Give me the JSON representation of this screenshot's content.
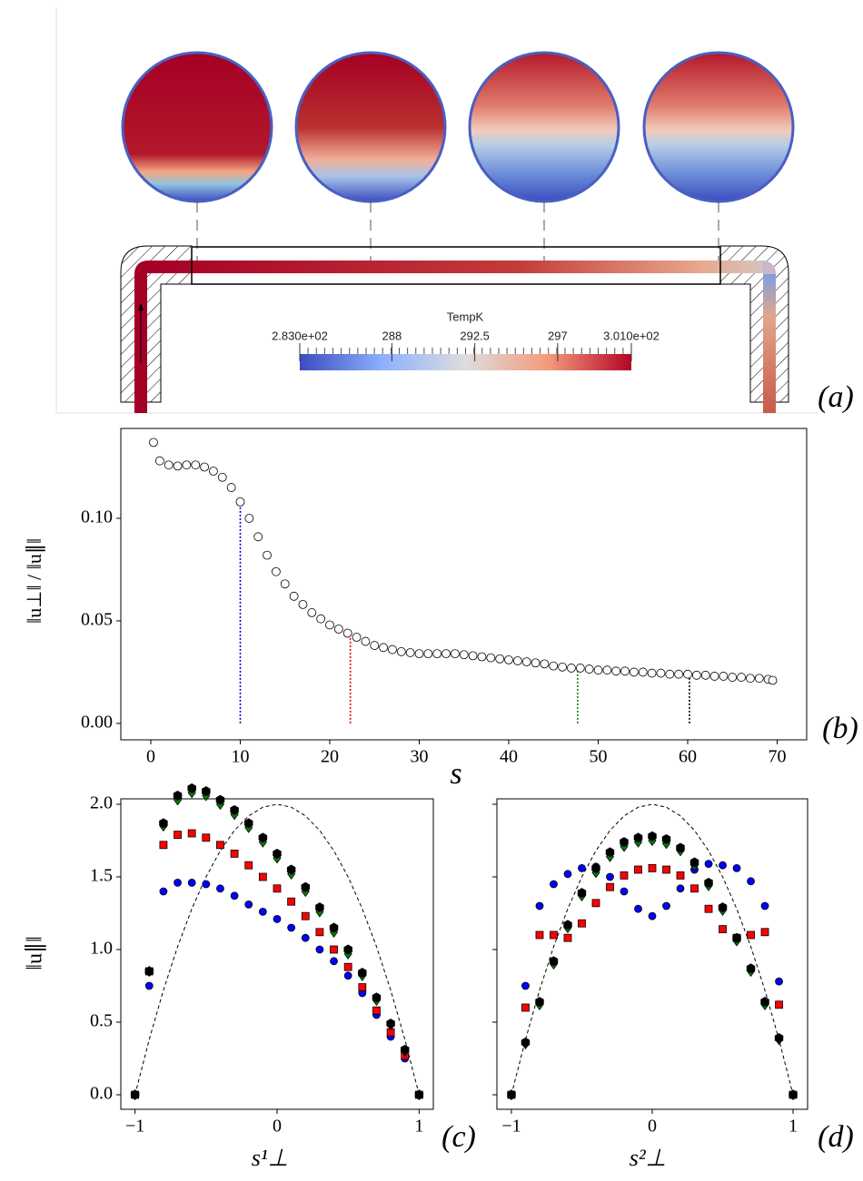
{
  "chart_data": [
    {
      "type": "image",
      "panel_label": "(a)",
      "colorbar": {
        "title": "TempK",
        "lim": [
          283,
          301
        ],
        "ticks": [
          {
            "value": 283,
            "label": "2.830e+02"
          },
          288,
          292.5,
          297,
          {
            "value": 301,
            "label": "3.010e+02"
          }
        ],
        "colors": [
          "#3b4cc0",
          "#8db0fe",
          "#dddddd",
          "#f49a7b",
          "#b40426"
        ]
      }
    },
    {
      "type": "scatter",
      "panel_label": "(b)",
      "xlabel": "s",
      "ylabel": "‖u⊥‖ / ‖u∥‖",
      "xlim": [
        -3.35,
        73.3
      ],
      "ylim": [
        -0.008,
        0.1438
      ],
      "xticks": [
        0,
        10,
        20,
        30,
        40,
        50,
        60,
        70
      ],
      "yticks": [
        {
          "value": 0,
          "label": "0.00"
        },
        0.05,
        {
          "value": 0.1,
          "label": "0.10"
        }
      ],
      "color": "#ffffff",
      "marker": "o",
      "x": [
        0.3,
        1,
        2,
        3,
        4,
        5,
        6,
        7,
        8,
        9,
        10,
        11,
        12,
        13,
        14,
        15,
        16,
        17,
        18,
        19,
        20,
        21,
        22,
        23,
        24,
        25,
        26,
        27,
        28,
        29,
        30,
        31,
        32,
        33,
        34,
        35,
        36,
        37,
        38,
        39,
        40,
        41,
        42,
        43,
        44,
        45,
        46,
        47,
        48,
        49,
        50,
        51,
        52,
        53,
        54,
        55,
        56,
        57,
        58,
        59,
        60,
        61,
        62,
        63,
        64,
        65,
        66,
        67,
        68,
        69,
        69.5
      ],
      "values": [
        0.137,
        0.128,
        0.126,
        0.1255,
        0.126,
        0.126,
        0.125,
        0.123,
        0.12,
        0.115,
        0.108,
        0.1,
        0.091,
        0.082,
        0.074,
        0.068,
        0.062,
        0.058,
        0.054,
        0.051,
        0.048,
        0.046,
        0.044,
        0.042,
        0.04,
        0.038,
        0.037,
        0.036,
        0.035,
        0.0345,
        0.034,
        0.034,
        0.034,
        0.034,
        0.034,
        0.0335,
        0.033,
        0.0325,
        0.032,
        0.0315,
        0.031,
        0.0305,
        0.03,
        0.0295,
        0.029,
        0.028,
        0.0275,
        0.027,
        0.027,
        0.0265,
        0.026,
        0.026,
        0.0255,
        0.0255,
        0.025,
        0.025,
        0.0245,
        0.0245,
        0.024,
        0.024,
        0.024,
        0.0235,
        0.0235,
        0.023,
        0.023,
        0.0225,
        0.0225,
        0.022,
        0.022,
        0.0215,
        0.021
      ],
      "markers": [
        {
          "x": 10,
          "y": 0.108,
          "color": "#0000cc"
        },
        {
          "x": 22.3,
          "y": 0.044,
          "color": "#dd0000"
        },
        {
          "x": 47.7,
          "y": 0.027,
          "color": "#008000"
        },
        {
          "x": 60.2,
          "y": 0.024,
          "color": "#000000"
        }
      ]
    },
    {
      "type": "scatter",
      "panel_label": "(c)",
      "xlabel": "s¹⊥",
      "ylabel": "‖u∥‖",
      "xlim": [
        -1.1,
        1.1
      ],
      "ylim": [
        -0.1,
        2.0375
      ],
      "xticks": [
        {
          "value": -1,
          "label": "−1"
        },
        0,
        1
      ],
      "yticks": [
        {
          "value": 0,
          "label": "0.0"
        },
        0.5,
        {
          "value": 1,
          "label": "1.0"
        },
        1.5,
        {
          "value": 2,
          "label": "2.0"
        }
      ],
      "x": [
        -1,
        -0.9,
        -0.8,
        -0.7,
        -0.6,
        -0.5,
        -0.4,
        -0.3,
        -0.2,
        -0.1,
        0,
        0.1,
        0.2,
        0.3,
        0.4,
        0.5,
        0.6,
        0.7,
        0.8,
        0.9,
        1
      ],
      "series": [
        {
          "style": "dashed",
          "color": "#000000",
          "values": [
            0,
            0.38,
            0.72,
            1.02,
            1.28,
            1.5,
            1.68,
            1.82,
            1.92,
            1.98,
            2,
            1.98,
            1.92,
            1.82,
            1.68,
            1.5,
            1.28,
            1.02,
            0.72,
            0.38,
            0
          ]
        },
        {
          "marker": "o",
          "color": "#0000ff",
          "values": [
            0,
            0.75,
            1.4,
            1.46,
            1.46,
            1.45,
            1.42,
            1.37,
            1.31,
            1.26,
            1.21,
            1.15,
            1.08,
            1,
            0.92,
            0.82,
            0.7,
            0.55,
            0.4,
            0.25,
            0
          ]
        },
        {
          "marker": "s",
          "color": "#ff0000",
          "values": [
            0,
            0.85,
            1.72,
            1.79,
            1.8,
            1.77,
            1.72,
            1.66,
            1.58,
            1.5,
            1.42,
            1.33,
            1.23,
            1.12,
            1,
            0.88,
            0.74,
            0.58,
            0.43,
            0.27,
            0
          ]
        },
        {
          "marker": "D",
          "color": "#008000",
          "values": [
            0,
            0.85,
            1.85,
            2.03,
            2.08,
            2.06,
            2,
            1.93,
            1.84,
            1.74,
            1.63,
            1.52,
            1.4,
            1.26,
            1.12,
            0.97,
            0.82,
            0.65,
            0.48,
            0.3,
            0
          ]
        },
        {
          "marker": "h",
          "color": "#000000",
          "values": [
            0,
            0.85,
            1.87,
            2.06,
            2.11,
            2.09,
            2.03,
            1.96,
            1.87,
            1.77,
            1.66,
            1.55,
            1.43,
            1.29,
            1.15,
            1,
            0.84,
            0.67,
            0.49,
            0.31,
            0
          ]
        }
      ]
    },
    {
      "type": "scatter",
      "panel_label": "(d)",
      "xlabel": "s²⊥",
      "xlim": [
        -1.103,
        1.103
      ],
      "ylim": [
        -0.1,
        2.0375
      ],
      "xticks": [
        {
          "value": -1,
          "label": "−1"
        },
        0,
        1
      ],
      "yticks": [
        0,
        0.5,
        1,
        1.5,
        2
      ],
      "ytick_labels": false,
      "x": [
        -1,
        -0.9,
        -0.8,
        -0.7,
        -0.6,
        -0.5,
        -0.4,
        -0.3,
        -0.2,
        -0.1,
        0,
        0.1,
        0.2,
        0.3,
        0.4,
        0.5,
        0.6,
        0.7,
        0.8,
        0.9,
        1
      ],
      "series": [
        {
          "style": "dashed",
          "color": "#000000",
          "values": [
            0,
            0.38,
            0.72,
            1.02,
            1.28,
            1.5,
            1.68,
            1.82,
            1.92,
            1.98,
            2,
            1.98,
            1.92,
            1.82,
            1.68,
            1.5,
            1.28,
            1.02,
            0.72,
            0.38,
            0
          ]
        },
        {
          "marker": "o",
          "color": "#0000ff",
          "values": [
            0,
            0.75,
            1.3,
            1.45,
            1.52,
            1.56,
            1.57,
            1.5,
            1.4,
            1.28,
            1.23,
            1.3,
            1.42,
            1.55,
            1.59,
            1.58,
            1.56,
            1.47,
            1.3,
            0.78,
            0
          ]
        },
        {
          "marker": "s",
          "color": "#ff0000",
          "values": [
            0,
            0.6,
            1.1,
            1.1,
            1.08,
            1.18,
            1.32,
            1.43,
            1.51,
            1.55,
            1.56,
            1.55,
            1.51,
            1.42,
            1.28,
            1.14,
            1.08,
            1.1,
            1.12,
            0.62,
            0
          ]
        },
        {
          "marker": "D",
          "color": "#008000",
          "values": [
            0,
            0.35,
            0.62,
            0.9,
            1.15,
            1.37,
            1.53,
            1.64,
            1.71,
            1.74,
            1.75,
            1.73,
            1.68,
            1.58,
            1.44,
            1.27,
            1.06,
            0.85,
            0.62,
            0.38,
            0
          ]
        },
        {
          "marker": "h",
          "color": "#000000",
          "values": [
            0,
            0.36,
            0.64,
            0.92,
            1.17,
            1.39,
            1.56,
            1.67,
            1.74,
            1.77,
            1.78,
            1.76,
            1.7,
            1.6,
            1.46,
            1.29,
            1.08,
            0.87,
            0.64,
            0.39,
            0
          ]
        }
      ]
    }
  ]
}
